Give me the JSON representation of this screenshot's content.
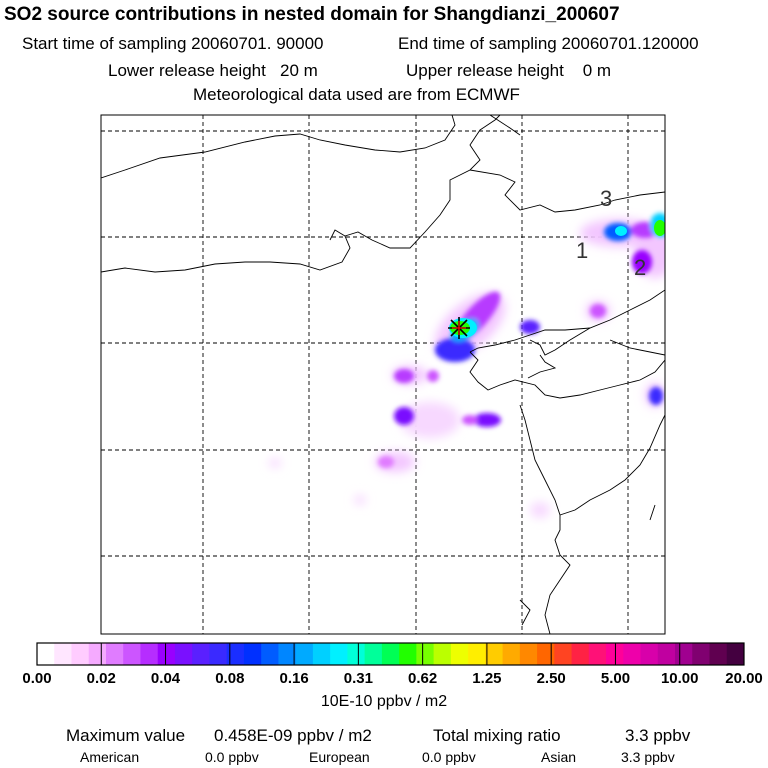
{
  "title": "SO2 source contributions in nested domain for Shangdianzi_200607",
  "sampling": {
    "start": "Start time of sampling 20060701. 90000",
    "end": "End time of sampling 20060701.120000"
  },
  "release": {
    "lower": "Lower release height   20 m",
    "upper": "Upper release height    0 m"
  },
  "met_note": "Meteorological data used are from ECMWF",
  "map": {
    "region_labels": [
      "1",
      "2",
      "3"
    ],
    "receptor_marker": "star-icon"
  },
  "colorbar": {
    "ticks": [
      "0.00",
      "0.02",
      "0.04",
      "0.08",
      "0.16",
      "0.31",
      "0.62",
      "1.25",
      "2.50",
      "5.00",
      "10.00",
      "20.00"
    ],
    "unit": "10E-10 ppbv / m2",
    "colors": [
      "#ffffff",
      "#ffe6ff",
      "#ffccff",
      "#f5aaff",
      "#e07cff",
      "#cc55ff",
      "#b62dff",
      "#9900ff",
      "#7a10ff",
      "#5a20ff",
      "#3a2aff",
      "#1a2eff",
      "#0030ff",
      "#005cff",
      "#0086ff",
      "#00aaff",
      "#00d0ff",
      "#00f0ff",
      "#00ffd8",
      "#00ff9a",
      "#00ff55",
      "#22ff00",
      "#77ff00",
      "#bbff00",
      "#eeff00",
      "#ffee00",
      "#ffcc00",
      "#ffaa00",
      "#ff8800",
      "#ff6600",
      "#ff4422",
      "#ff2244",
      "#ff1177",
      "#ff0099",
      "#ee00aa",
      "#d800aa",
      "#c000a0",
      "#a00090",
      "#800070",
      "#600050",
      "#440040"
    ]
  },
  "summary": {
    "max_label": "Maximum value",
    "max_value": "0.458E-09 ppbv / m2",
    "total_label": "Total mixing ratio",
    "total_value": "3.3 ppbv",
    "american_label": "American",
    "american_value": "0.0 ppbv",
    "european_label": "European",
    "european_value": "0.0 ppbv",
    "asian_label": "Asian",
    "asian_value": "3.3 ppbv"
  }
}
